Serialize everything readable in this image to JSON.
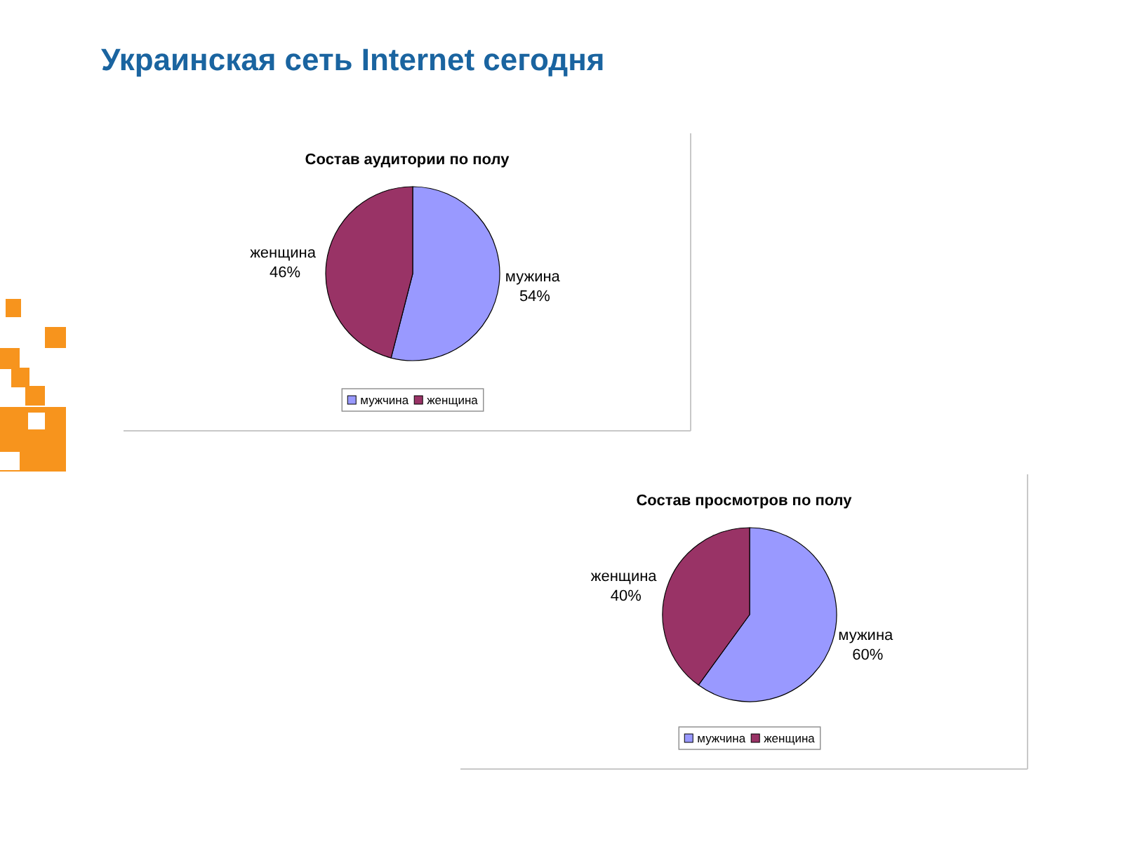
{
  "chart_data": [
    {
      "type": "other",
      "title": "Украинская сеть Internet сегодня"
    },
    {
      "type": "pie",
      "title": "Состав аудитории по полу",
      "categories": [
        "мужчина",
        "женщина"
      ],
      "values": [
        54,
        46
      ],
      "colors": [
        "#9999ff",
        "#993366"
      ],
      "value_labels": [
        "мужина 54%",
        "женщина 46%"
      ],
      "legend": "bottom"
    },
    {
      "type": "pie",
      "title": "Состав просмотров по полу",
      "categories": [
        "мужчина",
        "женщина"
      ],
      "values": [
        60,
        40
      ],
      "colors": [
        "#9999ff",
        "#993366"
      ],
      "value_labels": [
        "мужина 60%",
        "женщина 40%"
      ],
      "legend": "bottom"
    }
  ]
}
